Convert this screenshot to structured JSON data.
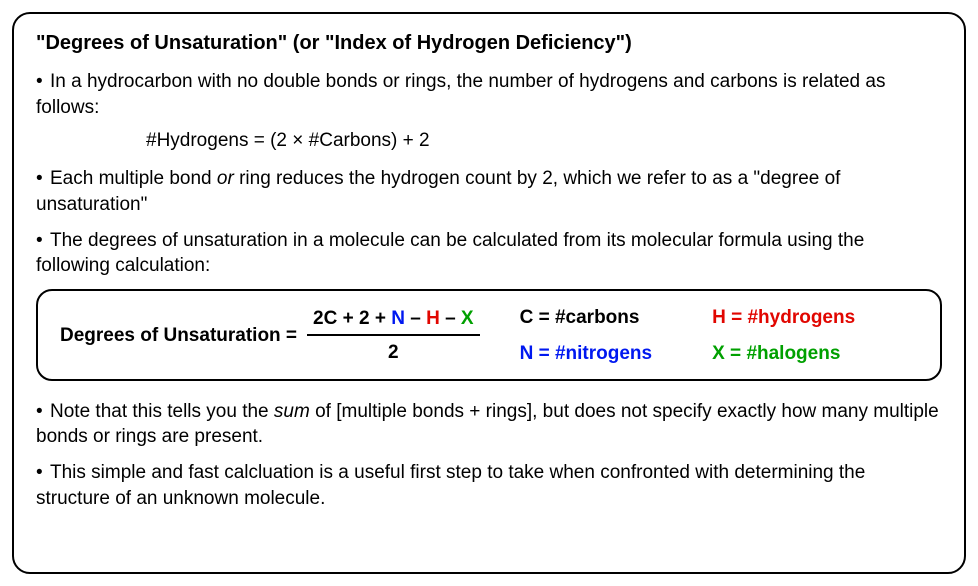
{
  "title": "\"Degrees of Unsaturation\" (or \"Index of Hydrogen Deficiency\")",
  "bullets": {
    "b1": "In a hydrocarbon with no double bonds or rings, the number of hydrogens and carbons is related as follows:",
    "formula1": "#Hydrogens = (2 × #Carbons) + 2",
    "b2a": "Each multiple bond ",
    "b2_or": "or",
    "b2b": " ring reduces the hydrogen count by 2, which we refer to as a \"degree of unsaturation\"",
    "b3": "The degrees of unsaturation in a molecule can be calculated from its molecular formula using the following calculation:",
    "b4a": "Note that this tells you the ",
    "b4_sum": "sum",
    "b4b": " of [multiple bonds + rings], but does not specify exactly how many multiple bonds or rings are present.",
    "b5": "This simple and fast calcluation is a useful first step to take when confronted with determining the structure of an unknown molecule."
  },
  "equation": {
    "label": "Degrees of Unsaturation  =",
    "num_2c": "2C",
    "num_plus2": " + 2 + ",
    "num_N": "N",
    "num_minus1": " – ",
    "num_H": "H",
    "num_minus2": " – ",
    "num_X": "X",
    "den": "2"
  },
  "legend": {
    "C_label": "C = ",
    "C_val": "#carbons",
    "H_label": "H = ",
    "H_val": "#hydrogens",
    "N_label": "N = ",
    "N_val": "#nitrogens",
    "X_label": "X = ",
    "X_val": "#halogens"
  },
  "colors": {
    "black": "#000000",
    "blue": "#0018f0",
    "red": "#e10600",
    "green": "#00a000"
  }
}
